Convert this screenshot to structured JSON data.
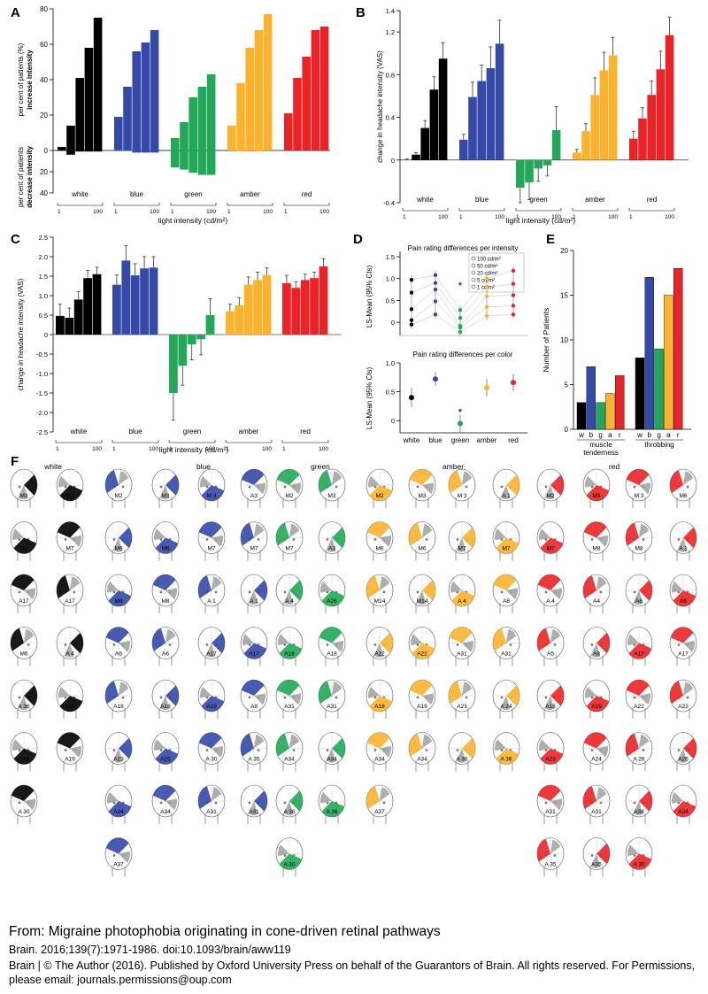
{
  "colors": {
    "white": "#000000",
    "blue": "#3549a8",
    "green": "#22a858",
    "amber": "#fbb32e",
    "red": "#ea2327",
    "gray": "#a0a0a0"
  },
  "panels": {
    "A": "A",
    "B": "B",
    "C": "C",
    "D": "D",
    "E": "E",
    "F": "F"
  },
  "chart_data": [
    {
      "panel": "A",
      "type": "bar",
      "groups": [
        "white",
        "blue",
        "green",
        "amber",
        "red"
      ],
      "ylabel_top": "per cent of patients (%)",
      "ylabel_top_bold": "increase intensity",
      "ylabel_bottom": "per cent of patients",
      "ylabel_bottom_bold": "decrease intensity",
      "xlabel": "light intensity (cd/m²)",
      "x_tick_start": "1",
      "x_tick_end": "100",
      "yticks_top": [
        "0",
        "20",
        "40",
        "60",
        "80"
      ],
      "yticks_bottom": [
        "20",
        "40"
      ],
      "ylim_top": [
        0,
        80
      ],
      "ylim_bottom": [
        0,
        40
      ],
      "increase": [
        [
          2,
          14,
          41,
          58,
          75
        ],
        [
          19,
          36,
          56,
          61,
          68
        ],
        [
          7,
          16,
          30,
          36,
          43
        ],
        [
          14,
          38,
          58,
          68,
          77
        ],
        [
          21,
          41,
          53,
          68,
          70
        ]
      ],
      "decrease": [
        [
          0,
          4,
          1,
          1,
          1
        ],
        [
          0,
          0,
          2,
          2,
          2
        ],
        [
          16,
          18,
          21,
          23,
          23
        ],
        [
          0,
          1,
          0,
          1,
          0
        ],
        [
          0,
          0,
          0,
          0,
          0
        ]
      ]
    },
    {
      "panel": "B",
      "type": "bar",
      "groups": [
        "white",
        "blue",
        "green",
        "amber",
        "red"
      ],
      "ylabel": "change in headache intensity (VAS)",
      "xlabel": "light intensity (cd/m²)",
      "x_tick_start": "1",
      "x_tick_end": "100",
      "yticks": [
        "-0.4",
        "0",
        "0.4",
        "0.8",
        "1.2",
        "1.4"
      ],
      "ylim": [
        -0.4,
        1.4
      ],
      "values": [
        [
          0.0,
          0.05,
          0.3,
          0.66,
          0.95
        ],
        [
          0.19,
          0.59,
          0.74,
          0.86,
          1.09
        ],
        [
          -0.26,
          -0.21,
          -0.08,
          -0.05,
          0.28
        ],
        [
          0.07,
          0.27,
          0.61,
          0.84,
          0.98
        ],
        [
          0.2,
          0.39,
          0.61,
          0.85,
          1.17
        ]
      ],
      "errors": [
        [
          0.01,
          0.02,
          0.07,
          0.12,
          0.15
        ],
        [
          0.05,
          0.14,
          0.15,
          0.2,
          0.22
        ],
        [
          0.14,
          0.16,
          0.12,
          0.1,
          0.22
        ],
        [
          0.03,
          0.07,
          0.16,
          0.17,
          0.17
        ],
        [
          0.07,
          0.1,
          0.13,
          0.17,
          0.17
        ]
      ]
    },
    {
      "panel": "C",
      "type": "bar",
      "groups": [
        "white",
        "blue",
        "green",
        "amber",
        "red"
      ],
      "ylabel": "change in headache intensity (VAS)",
      "xlabel": "light intensity (cd/m²)",
      "x_tick_start": "1",
      "x_tick_end": "100",
      "yticks": [
        "-2.5",
        "-2.0",
        "-1.5",
        "-1.0",
        "-0.5",
        "0",
        "0.5",
        "1.0",
        "1.5",
        "2.0",
        "2.5"
      ],
      "ylim": [
        -2.5,
        2.5
      ],
      "values": [
        [
          0.48,
          0.43,
          0.9,
          1.45,
          1.55
        ],
        [
          1.28,
          1.9,
          1.52,
          1.7,
          1.72
        ],
        [
          -1.5,
          -0.8,
          -0.25,
          -0.12,
          0.5
        ],
        [
          0.6,
          0.75,
          1.28,
          1.4,
          1.53
        ],
        [
          1.32,
          1.2,
          1.4,
          1.45,
          1.75
        ]
      ],
      "errors": [
        [
          0.3,
          0.25,
          0.2,
          0.2,
          0.18
        ],
        [
          0.25,
          0.38,
          0.3,
          0.3,
          0.28
        ],
        [
          0.7,
          0.5,
          0.4,
          0.4,
          0.42
        ],
        [
          0.18,
          0.2,
          0.2,
          0.2,
          0.18
        ],
        [
          0.2,
          0.15,
          0.15,
          0.15,
          0.2
        ]
      ]
    },
    {
      "panel": "D",
      "type": "scatter",
      "top_title": "Pain rating differences per intensity",
      "bottom_title": "Pain rating differences per color",
      "ylabel": "LS-Mean (95% CIs)",
      "categories": [
        "white",
        "blue",
        "green",
        "amber",
        "red"
      ],
      "legend": [
        "100 cd/m²",
        "50 cd/m²",
        "20 cd/m²",
        "5 cd/m²",
        "1 cd/m²"
      ],
      "yticks_top": [
        "0",
        "0.5",
        "1.0",
        "1.5"
      ],
      "yticks_bottom": [
        "0",
        "0.5",
        "1.0"
      ],
      "ylim_top": [
        -0.3,
        1.5
      ],
      "ylim_bottom": [
        -0.15,
        1.0
      ],
      "top_values": [
        [
          0.97,
          0.68,
          0.3,
          0.05,
          -0.05
        ],
        [
          1.08,
          0.9,
          0.75,
          0.48,
          0.18
        ],
        [
          0.28,
          0.1,
          -0.08,
          -0.12,
          -0.22
        ],
        [
          1.0,
          0.8,
          0.6,
          0.35,
          0.15
        ],
        [
          1.18,
          0.88,
          0.62,
          0.38,
          0.18
        ]
      ],
      "bottom_values": [
        0.4,
        0.72,
        -0.05,
        0.57,
        0.66
      ],
      "bottom_errors": [
        0.17,
        0.12,
        0.15,
        0.15,
        0.15
      ],
      "star": "*"
    },
    {
      "panel": "E",
      "type": "bar",
      "ylabel": "Number of Patients",
      "groups": [
        "muscle tenderness",
        "throbbing"
      ],
      "group_labels": [
        [
          "muscle",
          "tenderness"
        ],
        [
          "throbbing"
        ]
      ],
      "bar_labels": [
        "w",
        "b",
        "g",
        "a",
        "r"
      ],
      "yticks": [
        "0",
        "5",
        "10",
        "15",
        "20"
      ],
      "ylim": [
        0,
        20
      ],
      "values": [
        [
          3,
          7,
          3,
          4,
          6
        ],
        [
          8,
          17,
          9,
          15,
          18
        ]
      ]
    }
  ],
  "figF": {
    "sections": [
      {
        "title": "white",
        "heads": [
          [
            "M3",
            "M3"
          ],
          [
            "M7",
            "M7"
          ],
          [
            "A17",
            "A17"
          ],
          [
            "M6",
            "A 4"
          ],
          [
            "A 36",
            "A36"
          ],
          [
            "A18",
            "A19"
          ],
          [
            "A 30"
          ]
        ]
      },
      {
        "title": "blue",
        "heads": [
          [
            "M2",
            "M3",
            "M 3",
            "A3"
          ],
          [
            "M6",
            "M6",
            "M7",
            "M7"
          ],
          [
            "M8",
            "M8",
            "A 1",
            "A 1"
          ],
          [
            "A6",
            "A6",
            "A17",
            "A17"
          ],
          [
            "A18",
            "A18",
            "A19",
            "A8"
          ],
          [
            "A23",
            "A26",
            "A 30",
            "A 35"
          ],
          [
            "A34",
            "A34",
            "A31",
            "A31"
          ],
          [
            "A37"
          ]
        ]
      },
      {
        "title": "green",
        "heads": [
          [
            "M2",
            "M3"
          ],
          [
            "M7",
            "A3"
          ],
          [
            "A 4",
            "A26"
          ],
          [
            "A18",
            "A18"
          ],
          [
            "A31",
            "A31"
          ],
          [
            "A34",
            "A34"
          ],
          [
            "A 36",
            "A 36"
          ],
          [
            "A 30"
          ]
        ]
      },
      {
        "title": "amber",
        "heads": [
          [
            "M2",
            "M3",
            "M 3",
            "A 1"
          ],
          [
            "M6",
            "M6",
            "M7",
            "M7"
          ],
          [
            "M14",
            "M14",
            "A 4",
            "A8"
          ],
          [
            "A22",
            "A22",
            "A31",
            "A31"
          ],
          [
            "A18",
            "A19",
            "A23",
            "A 24"
          ],
          [
            "A34",
            "A34",
            "A 36",
            "A 36"
          ],
          [
            "A37"
          ]
        ]
      },
      {
        "title": "red",
        "heads": [
          [
            "M2",
            "M3",
            "M 3",
            "M6"
          ],
          [
            "M7",
            "M8",
            "M8",
            "A 1"
          ],
          [
            "A 4",
            "A4",
            "A6",
            "A6"
          ],
          [
            "A5",
            "A8",
            "A17",
            "A17"
          ],
          [
            "A18",
            "A19",
            "A22",
            "A22"
          ],
          [
            "A23",
            "A24",
            "A 26",
            "A26"
          ],
          [
            "A31",
            "A31",
            "A34",
            "A34"
          ],
          [
            "A 35",
            "A35",
            "A 30"
          ]
        ]
      }
    ]
  },
  "caption": {
    "title": "From: Migraine photophobia originating in cone-driven retinal pathways",
    "citation": "Brain. 2016;139(7):1971-1986. doi:10.1093/brain/aww119",
    "rights": "Brain | © The Author (2016). Published by Oxford University Press on behalf of the Guarantors of Brain. All rights reserved. For Permissions, please email: journals.permissions@oup.com"
  }
}
